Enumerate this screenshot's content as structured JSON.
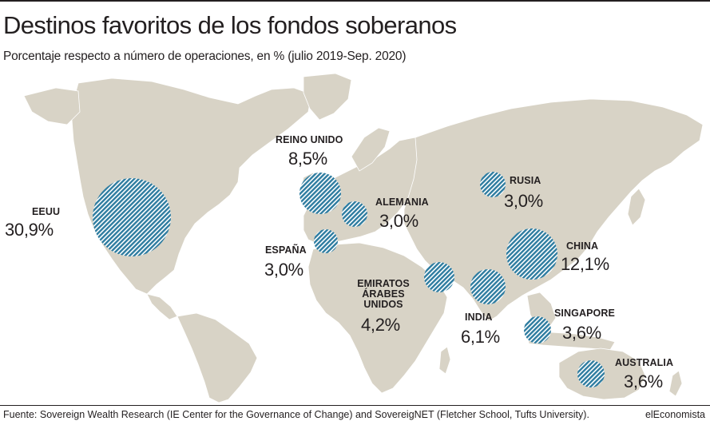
{
  "title": "Destinos favoritos de los fondos soberanos",
  "subtitle": "Porcentaje respecto a número de operaciones, en % (julio 2019-Sep. 2020)",
  "source": "Fuente: Sovereign Wealth Research (IE Center for the Governance of Change) and SovereigNET (Fletcher School, Tufts University).",
  "brand": "elEconomista",
  "colors": {
    "land": "#d8d3c6",
    "bubble": "#2e7ca0",
    "text": "#231f20"
  },
  "destinations": [
    {
      "name": "EEUU",
      "value": 30.9,
      "value_label": "30,9%"
    },
    {
      "name": "REINO UNIDO",
      "value": 8.5,
      "value_label": "8,5%"
    },
    {
      "name": "ALEMANIA",
      "value": 3.0,
      "value_label": "3,0%"
    },
    {
      "name": "ESPAÑA",
      "value": 3.0,
      "value_label": "3,0%"
    },
    {
      "name": "RUSIA",
      "value": 3.0,
      "value_label": "3,0%"
    },
    {
      "name": "CHINA",
      "value": 12.1,
      "value_label": "12,1%"
    },
    {
      "name": "EMIRATOS ÁRABES UNIDOS",
      "name_lines": [
        "EMIRATOS",
        "ÁRABES",
        "UNIDOS"
      ],
      "value": 4.2,
      "value_label": "4,2%"
    },
    {
      "name": "INDIA",
      "value": 6.1,
      "value_label": "6,1%"
    },
    {
      "name": "SINGAPORE",
      "value": 3.6,
      "value_label": "3,6%"
    },
    {
      "name": "AUSTRALIA",
      "value": 3.6,
      "value_label": "3,6%"
    }
  ]
}
